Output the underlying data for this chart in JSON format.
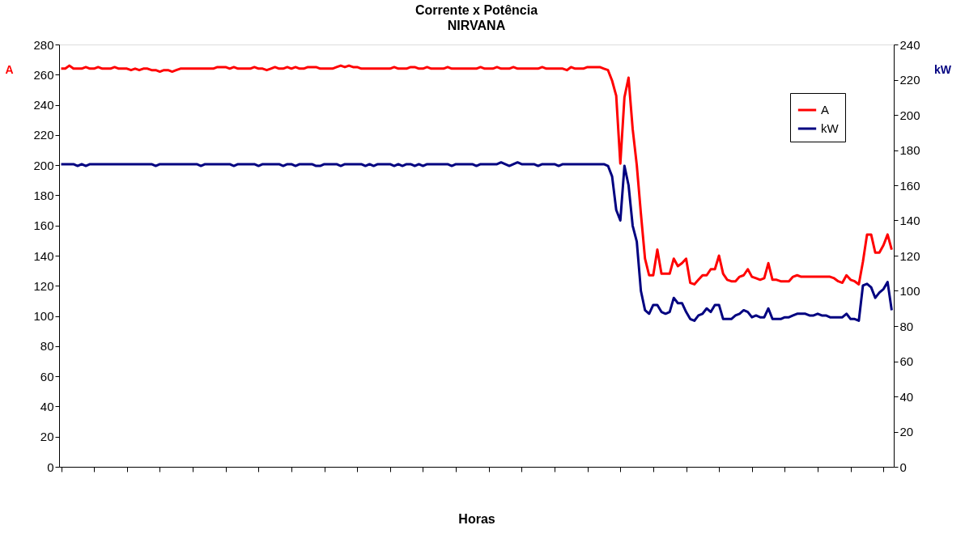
{
  "chart_data": {
    "type": "line",
    "title": "Corrente x Potência",
    "subtitle": "NIRVANA",
    "xlabel": "Horas",
    "ylabel": "A",
    "y2label": "kW",
    "categories": [
      null,
      null,
      null,
      null,
      null,
      null,
      null,
      null,
      null,
      null,
      null,
      null,
      null,
      null,
      null,
      null,
      null,
      null,
      null,
      null,
      null,
      null,
      null,
      null,
      null,
      null,
      null,
      null,
      null,
      null,
      null,
      null,
      null,
      null,
      null,
      null,
      null,
      null,
      null,
      null,
      null,
      null,
      null,
      null,
      null,
      null,
      null,
      null,
      null,
      null,
      null,
      null,
      null,
      null,
      null,
      null,
      null,
      null,
      null,
      null,
      null,
      null,
      null,
      null,
      null,
      null,
      null,
      null,
      null,
      null,
      null,
      null,
      null,
      null,
      null,
      null,
      null,
      null,
      null,
      null,
      null,
      null,
      null,
      null,
      null,
      null,
      null,
      null,
      null,
      null,
      null,
      null,
      null,
      null,
      null,
      null,
      null,
      null,
      null,
      null,
      null,
      null,
      null,
      null,
      null,
      null,
      null,
      null,
      null,
      null,
      null,
      null,
      null,
      null,
      null,
      null,
      null,
      null,
      null,
      null,
      null,
      null,
      null,
      null,
      null,
      null,
      null,
      null,
      null,
      null,
      null,
      null,
      null,
      null,
      null,
      null,
      null,
      null,
      null,
      null,
      null,
      null,
      null,
      null,
      null,
      null,
      null,
      null,
      null,
      null,
      null,
      null,
      null,
      null,
      null,
      null,
      null,
      null,
      null,
      null,
      null,
      null,
      null,
      null,
      null,
      null,
      null,
      null,
      null,
      null,
      null,
      null,
      null,
      null,
      null,
      null,
      null,
      null,
      null,
      null,
      null,
      null,
      null,
      null,
      null,
      null,
      null,
      null,
      null,
      null,
      null,
      null,
      null,
      null,
      null,
      null,
      null,
      null,
      null,
      null,
      null,
      null,
      null
    ],
    "ylim": [
      0,
      280
    ],
    "yticks": [
      0,
      20,
      40,
      60,
      80,
      100,
      120,
      140,
      160,
      180,
      200,
      220,
      240,
      260,
      280
    ],
    "y2lim": [
      0,
      240
    ],
    "y2ticks": [
      0,
      20,
      40,
      60,
      80,
      100,
      120,
      140,
      160,
      180,
      200,
      220,
      240
    ],
    "grid": false,
    "legend": "top right",
    "tick_labels": "y",
    "line_style": "solid",
    "marker": "none",
    "series": [
      {
        "name": "A",
        "color": "#ff0000",
        "values": [
          264,
          264,
          266,
          264,
          264,
          264,
          265,
          264,
          264,
          265,
          264,
          264,
          264,
          265,
          264,
          264,
          264,
          263,
          264,
          263,
          264,
          264,
          263,
          263,
          262,
          263,
          263,
          262,
          263,
          264,
          264,
          264,
          264,
          264,
          264,
          264,
          264,
          264,
          265,
          265,
          265,
          264,
          265,
          264,
          264,
          264,
          264,
          265,
          264,
          264,
          263,
          264,
          265,
          264,
          264,
          265,
          264,
          265,
          264,
          264,
          265,
          265,
          265,
          264,
          264,
          264,
          264,
          265,
          266,
          265,
          266,
          265,
          265,
          264,
          264,
          264,
          264,
          264,
          264,
          264,
          264,
          265,
          264,
          264,
          264,
          265,
          265,
          264,
          264,
          265,
          264,
          264,
          264,
          264,
          265,
          264,
          264,
          264,
          264,
          264,
          264,
          264,
          265,
          264,
          264,
          264,
          265,
          264,
          264,
          264,
          265,
          264,
          264,
          264,
          264,
          264,
          264,
          265,
          264,
          264,
          264,
          264,
          264,
          263,
          265,
          264,
          264,
          264,
          265,
          265,
          265,
          265,
          264,
          263,
          256,
          246,
          201,
          245,
          258,
          224,
          200,
          168,
          138,
          127,
          127,
          144,
          128,
          128,
          128,
          138,
          133,
          135,
          138,
          122,
          121,
          124,
          127,
          127,
          131,
          131,
          140,
          128,
          124,
          123,
          123,
          126,
          127,
          131,
          126,
          125,
          124,
          125,
          135,
          124,
          124,
          123,
          123,
          123,
          126,
          127,
          126,
          126,
          126,
          126,
          126,
          126,
          126,
          126,
          125,
          123,
          122,
          127,
          124,
          123,
          121,
          136,
          154,
          154,
          142,
          142,
          147,
          154,
          144
        ]
      },
      {
        "name": "kW",
        "color": "#000080",
        "axis": "y2",
        "values": [
          172,
          172,
          172,
          172,
          171,
          172,
          171,
          172,
          172,
          172,
          172,
          172,
          172,
          172,
          172,
          172,
          172,
          172,
          172,
          172,
          172,
          172,
          172,
          171,
          172,
          172,
          172,
          172,
          172,
          172,
          172,
          172,
          172,
          172,
          171,
          172,
          172,
          172,
          172,
          172,
          172,
          172,
          171,
          172,
          172,
          172,
          172,
          172,
          171,
          172,
          172,
          172,
          172,
          172,
          171,
          172,
          172,
          171,
          172,
          172,
          172,
          172,
          171,
          171,
          172,
          172,
          172,
          172,
          171,
          172,
          172,
          172,
          172,
          172,
          171,
          172,
          171,
          172,
          172,
          172,
          172,
          171,
          172,
          171,
          172,
          172,
          171,
          172,
          171,
          172,
          172,
          172,
          172,
          172,
          172,
          171,
          172,
          172,
          172,
          172,
          172,
          171,
          172,
          172,
          172,
          172,
          172,
          173,
          172,
          171,
          172,
          173,
          172,
          172,
          172,
          172,
          171,
          172,
          172,
          172,
          172,
          171,
          172,
          172,
          172,
          172,
          172,
          172,
          172,
          172,
          172,
          172,
          172,
          171,
          165,
          146,
          140,
          171,
          160,
          137,
          128,
          100,
          89,
          87,
          92,
          92,
          88,
          87,
          88,
          96,
          93,
          93,
          88,
          84,
          83,
          86,
          87,
          90,
          88,
          92,
          92,
          84,
          84,
          84,
          86,
          87,
          89,
          88,
          85,
          86,
          85,
          85,
          90,
          84,
          84,
          84,
          85,
          85,
          86,
          87,
          87,
          87,
          86,
          86,
          87,
          86,
          86,
          85,
          85,
          85,
          85,
          87,
          84,
          84,
          83,
          103,
          104,
          102,
          96,
          99,
          101,
          105,
          89
        ]
      }
    ]
  }
}
